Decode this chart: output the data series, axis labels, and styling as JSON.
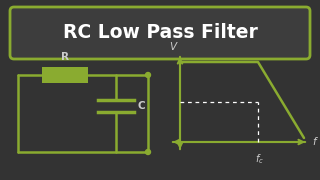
{
  "title": "RC Low Pass Filter",
  "bg_color": "#333333",
  "title_box_color": "#3d3d3d",
  "title_border_color": "#8aab30",
  "title_text_color": "#ffffff",
  "line_color": "#8aab30",
  "text_color": "#cccccc",
  "R_label": "R",
  "C_label": "C",
  "V_label": "V",
  "f_label": "f",
  "fc_label": "$f_c$"
}
